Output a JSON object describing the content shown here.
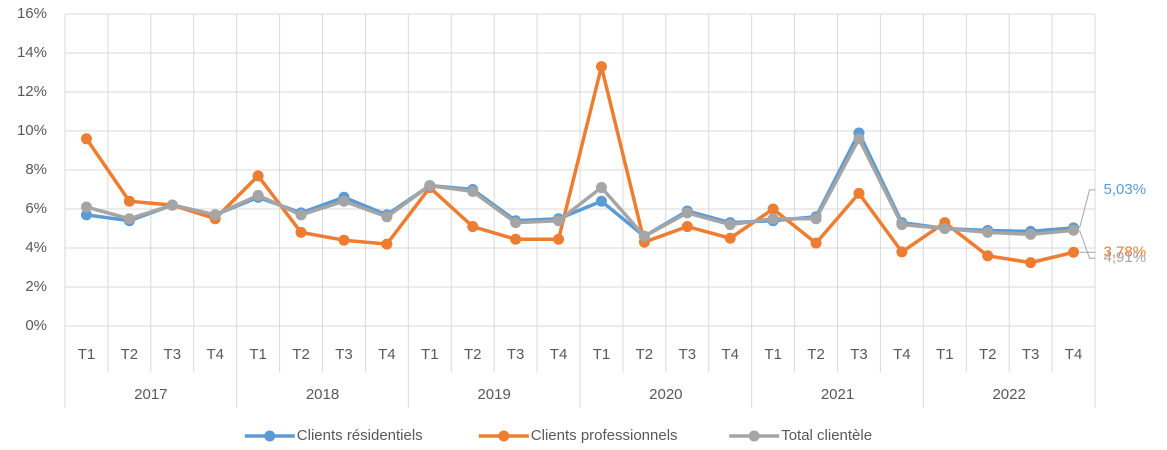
{
  "chart_data": {
    "type": "line",
    "categories": [
      "T1",
      "T2",
      "T3",
      "T4",
      "T1",
      "T2",
      "T3",
      "T4",
      "T1",
      "T2",
      "T3",
      "T4",
      "T1",
      "T2",
      "T3",
      "T4",
      "T1",
      "T2",
      "T3",
      "T4",
      "T1",
      "T2",
      "T3",
      "T4"
    ],
    "groups": [
      "2017",
      "2018",
      "2019",
      "2020",
      "2021",
      "2022"
    ],
    "ylim": [
      0,
      16
    ],
    "yticks": [
      {
        "value": 0,
        "label": "0%"
      },
      {
        "value": 2,
        "label": "2%"
      },
      {
        "value": 4,
        "label": "4%"
      },
      {
        "value": 6,
        "label": "6%"
      },
      {
        "value": 8,
        "label": "8%"
      },
      {
        "value": 10,
        "label": "10%"
      },
      {
        "value": 12,
        "label": "12%"
      },
      {
        "value": 14,
        "label": "14%"
      },
      {
        "value": 16,
        "label": "16%"
      }
    ],
    "grid": true,
    "legend": "bottom",
    "series": [
      {
        "name": "Clients résidentiels",
        "color": "#5b9bd5",
        "values": [
          5.7,
          5.4,
          6.2,
          5.7,
          6.6,
          5.8,
          6.6,
          5.7,
          7.2,
          7.0,
          5.4,
          5.5,
          6.4,
          4.6,
          5.9,
          5.3,
          5.4,
          5.6,
          9.9,
          5.3,
          5.0,
          4.9,
          4.85,
          5.03
        ],
        "value_labels": [
          null,
          null,
          null,
          null,
          null,
          null,
          null,
          null,
          null,
          null,
          null,
          null,
          null,
          null,
          null,
          null,
          null,
          null,
          null,
          null,
          null,
          null,
          null,
          "5,03%"
        ]
      },
      {
        "name": "Clients professionnels",
        "color": "#ed7d31",
        "values": [
          9.6,
          6.4,
          6.2,
          5.5,
          7.7,
          4.8,
          4.4,
          4.2,
          7.1,
          5.1,
          4.45,
          4.45,
          13.3,
          4.3,
          5.1,
          4.5,
          6.0,
          4.25,
          6.8,
          3.8,
          5.3,
          3.6,
          3.25,
          3.78
        ],
        "value_labels": [
          null,
          null,
          null,
          null,
          null,
          null,
          null,
          null,
          null,
          null,
          null,
          null,
          null,
          null,
          null,
          null,
          null,
          null,
          null,
          null,
          null,
          null,
          null,
          "3,78%"
        ]
      },
      {
        "name": "Total clientèle",
        "color": "#a5a5a5",
        "values": [
          6.1,
          5.5,
          6.2,
          5.7,
          6.7,
          5.7,
          6.4,
          5.6,
          7.2,
          6.9,
          5.3,
          5.4,
          7.1,
          4.6,
          5.8,
          5.2,
          5.5,
          5.5,
          9.6,
          5.2,
          5.0,
          4.8,
          4.7,
          4.91
        ],
        "value_labels": [
          null,
          null,
          null,
          null,
          null,
          null,
          null,
          null,
          null,
          null,
          null,
          null,
          null,
          null,
          null,
          null,
          null,
          null,
          null,
          null,
          null,
          null,
          null,
          "4,91%"
        ]
      }
    ]
  }
}
